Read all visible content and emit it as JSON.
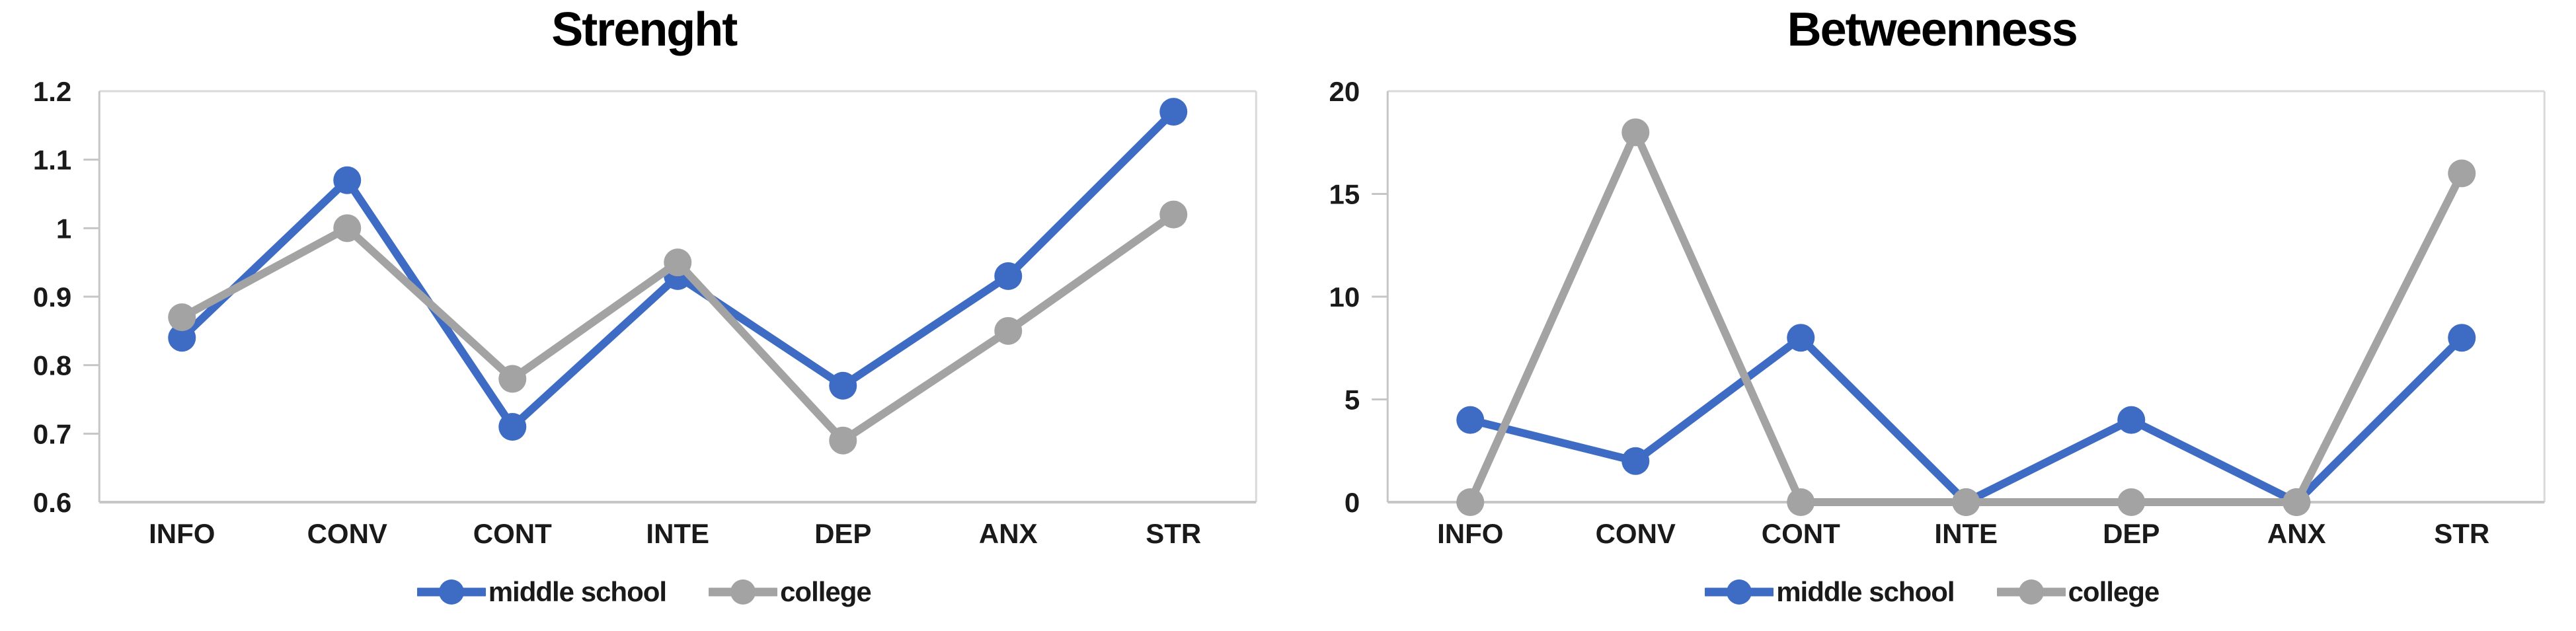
{
  "page": {
    "background": "#FFFFFF"
  },
  "style": {
    "text_color": "#1A1A1A",
    "axis_line_color": "#C6C6C6",
    "plot_border_color": "#D9D9D9",
    "series_blue": "#3E6CC4",
    "series_gray": "#A3A3A3"
  },
  "chart_data": [
    {
      "type": "line",
      "title": "Strenght",
      "categories": [
        "INFO",
        "CONV",
        "CONT",
        "INTE",
        "DEP",
        "ANX",
        "STR"
      ],
      "ylim": [
        0.6,
        1.2
      ],
      "ytick_step": 0.1,
      "ytick_labels": [
        "0.6",
        "0.7",
        "0.8",
        "0.9",
        "1",
        "1.1",
        "1.2"
      ],
      "grid": false,
      "legend_position": "bottom",
      "series": [
        {
          "name": "middle school",
          "color": "#3E6CC4",
          "values": [
            0.84,
            1.07,
            0.71,
            0.93,
            0.77,
            0.93,
            1.17
          ]
        },
        {
          "name": "college",
          "color": "#A3A3A3",
          "values": [
            0.87,
            1.0,
            0.78,
            0.95,
            0.69,
            0.85,
            1.02
          ]
        }
      ]
    },
    {
      "type": "line",
      "title": "Betweenness",
      "categories": [
        "INFO",
        "CONV",
        "CONT",
        "INTE",
        "DEP",
        "ANX",
        "STR"
      ],
      "ylim": [
        0,
        20
      ],
      "ytick_step": 5,
      "ytick_labels": [
        "0",
        "5",
        "10",
        "15",
        "20"
      ],
      "grid": false,
      "legend_position": "bottom",
      "series": [
        {
          "name": "middle school",
          "color": "#3E6CC4",
          "values": [
            4,
            2,
            8,
            0,
            4,
            0,
            8
          ]
        },
        {
          "name": "college",
          "color": "#A3A3A3",
          "values": [
            0,
            18,
            0,
            0,
            0,
            0,
            16
          ]
        }
      ]
    }
  ]
}
